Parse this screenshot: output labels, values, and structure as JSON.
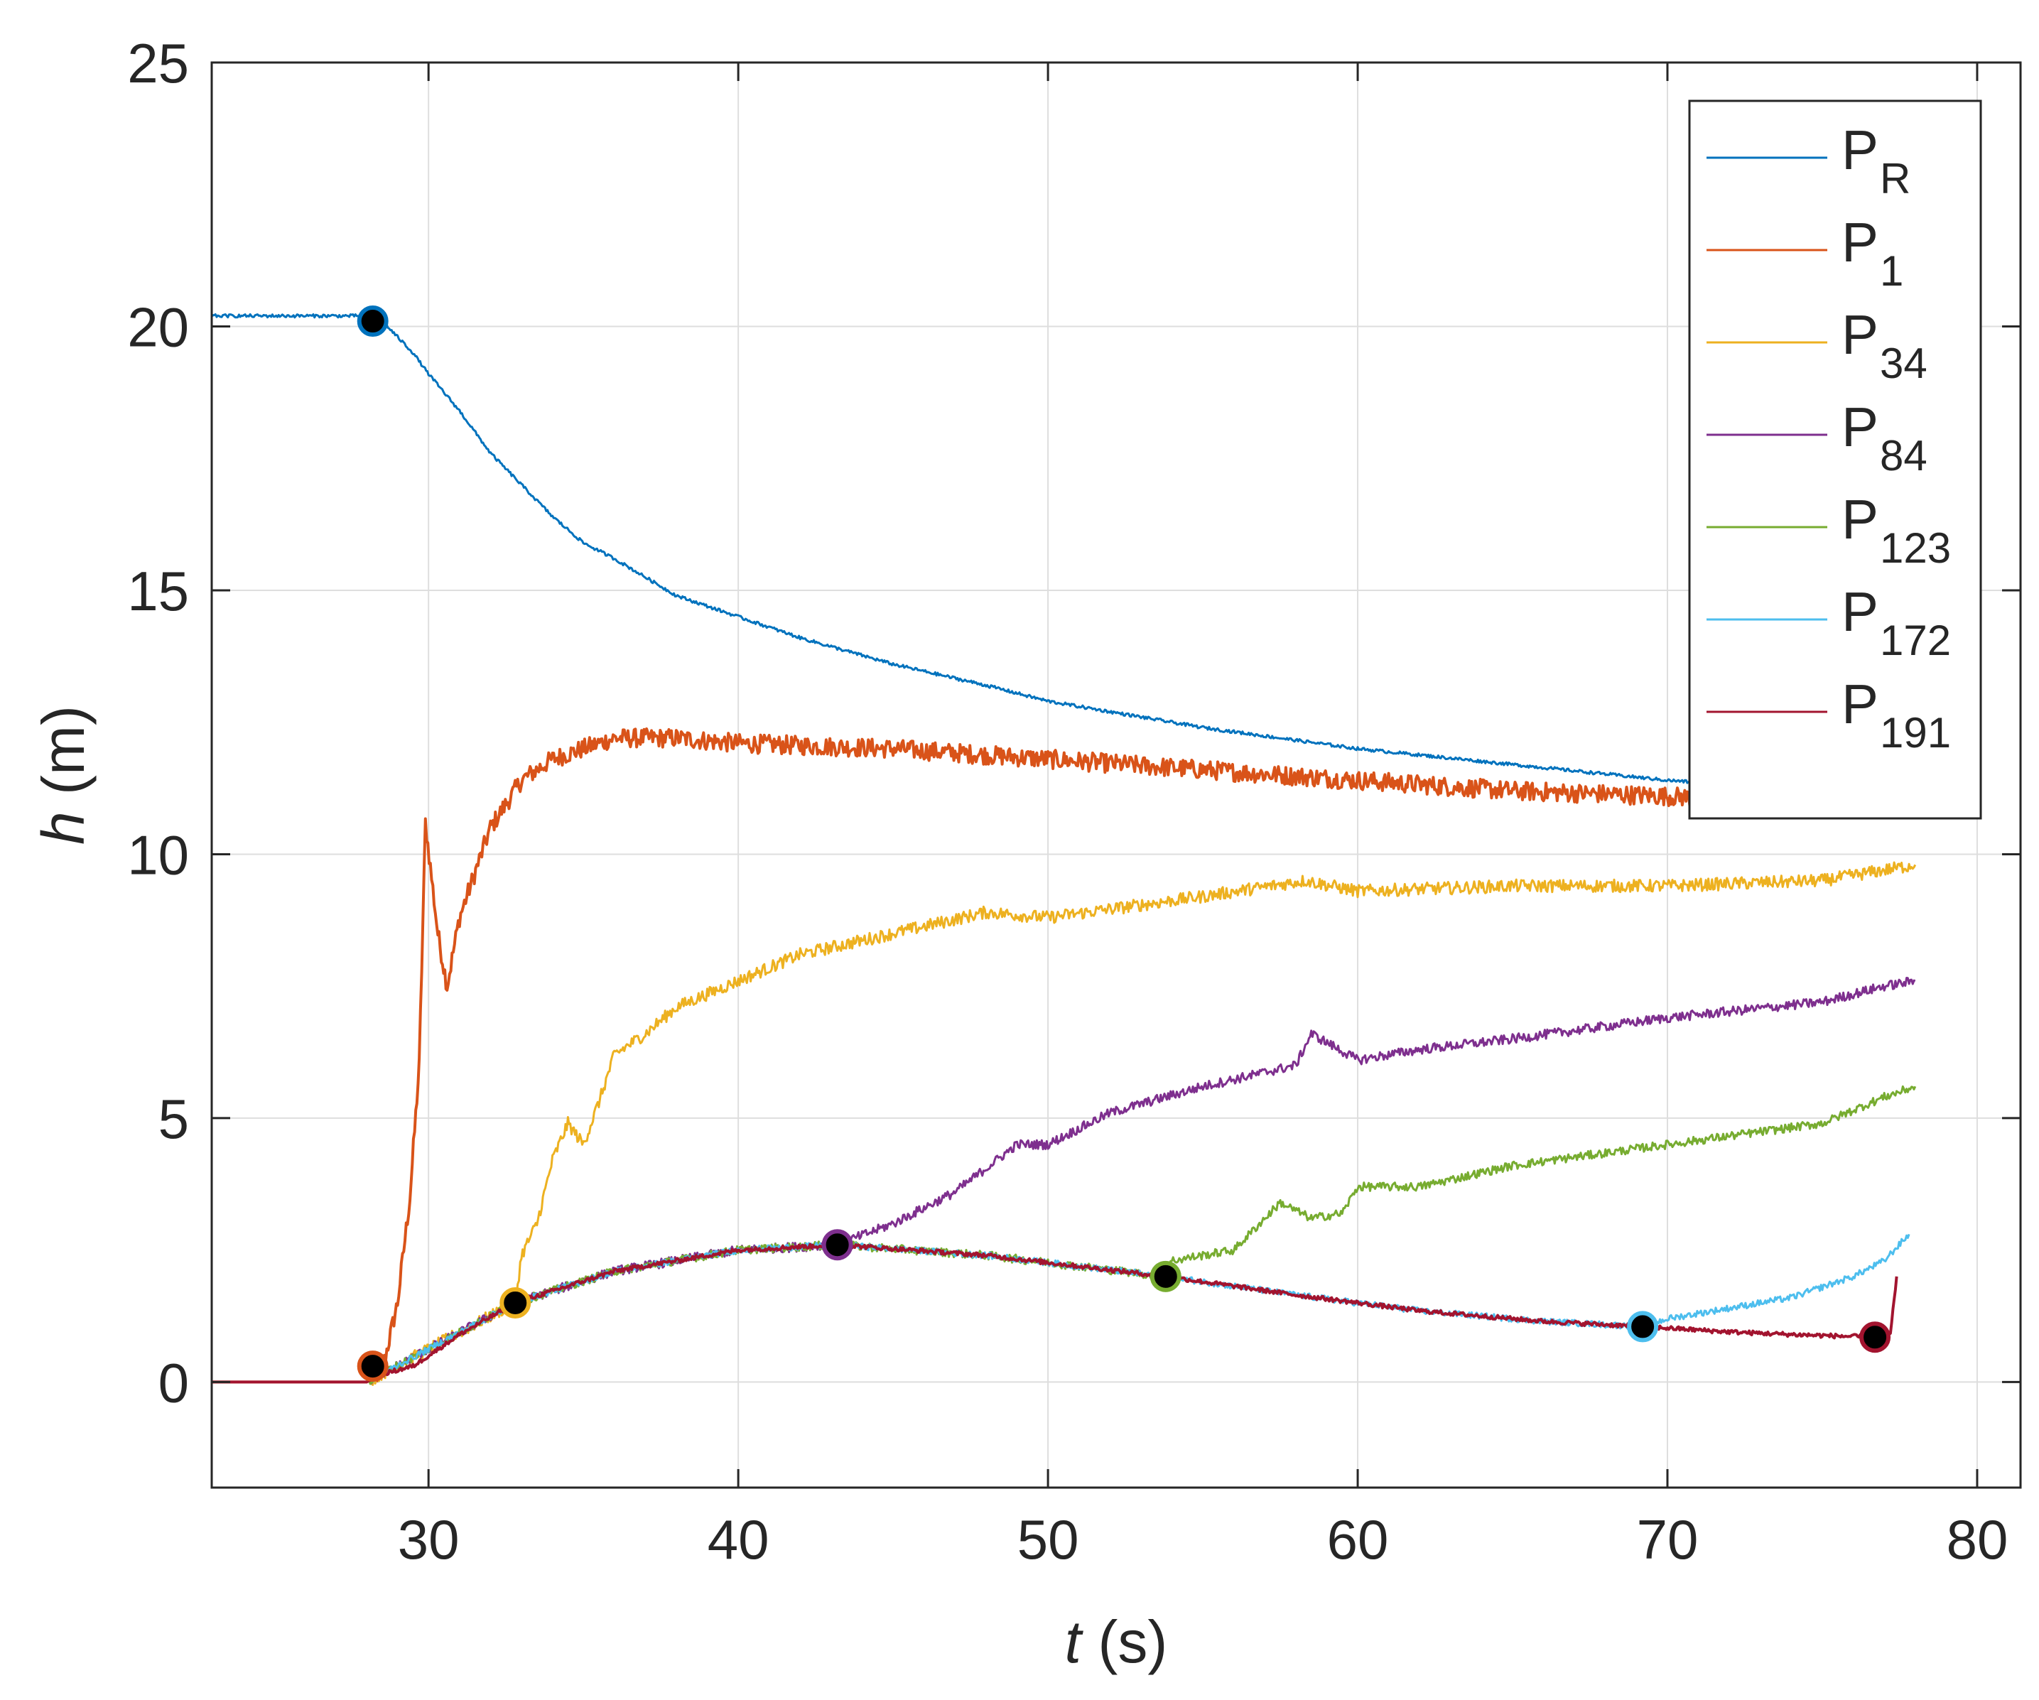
{
  "chart_data": {
    "type": "line",
    "xlabel": {
      "var": "t",
      "unit": " (s)"
    },
    "ylabel": {
      "var": "h",
      "unit": " (m)"
    },
    "xlim": [
      23,
      81.4
    ],
    "ylim": [
      -2,
      25
    ],
    "xticks": [
      30,
      40,
      50,
      60,
      70,
      80
    ],
    "yticks": [
      0,
      5,
      10,
      15,
      20,
      25
    ],
    "grid": true,
    "legend_position": "top-right",
    "series": [
      {
        "name": "P",
        "sub": "R",
        "color": "#0072BD",
        "noise": 0.03,
        "x": [
          23,
          28,
          28.5,
          29,
          29.5,
          30,
          31,
          32,
          33,
          34,
          35,
          36,
          38,
          40,
          42,
          45,
          48,
          50,
          55,
          60,
          65,
          70,
          75,
          77,
          78
        ],
        "y": [
          20.2,
          20.2,
          20.1,
          19.8,
          19.5,
          19.1,
          18.4,
          17.6,
          17.0,
          16.4,
          15.9,
          15.6,
          14.9,
          14.5,
          14.1,
          13.6,
          13.2,
          12.9,
          12.4,
          12.0,
          11.7,
          11.4,
          11.2,
          11.1,
          11.0
        ]
      },
      {
        "name": "P",
        "sub": "1",
        "color": "#D95319",
        "noise": 0.18,
        "x": [
          23,
          28,
          28.5,
          29,
          29.4,
          29.7,
          29.9,
          30.3,
          30.6,
          31,
          32,
          33,
          34,
          36,
          38,
          40,
          45,
          50,
          55,
          60,
          65,
          70,
          73,
          75,
          77,
          78
        ],
        "y": [
          0,
          0,
          0.2,
          1.5,
          3.5,
          6.0,
          10.6,
          8.5,
          7.5,
          8.8,
          10.5,
          11.4,
          11.8,
          12.2,
          12.2,
          12.1,
          12.0,
          11.8,
          11.6,
          11.4,
          11.2,
          11.1,
          11.0,
          11.1,
          11.2,
          11.3
        ]
      },
      {
        "name": "P",
        "sub": "34",
        "color": "#EDB120",
        "noise": 0.12,
        "x": [
          23,
          28,
          32.8,
          33,
          33.5,
          34,
          34.5,
          35,
          35.5,
          36,
          37,
          38,
          40,
          42,
          45,
          48,
          50,
          55,
          58.3,
          60,
          65,
          70,
          75,
          77,
          78
        ],
        "y": [
          0,
          0,
          1.5,
          2.4,
          3.0,
          4.2,
          4.9,
          4.5,
          5.3,
          6.2,
          6.6,
          7.1,
          7.6,
          8.1,
          8.5,
          8.9,
          8.8,
          9.2,
          9.5,
          9.3,
          9.4,
          9.4,
          9.5,
          9.7,
          9.8
        ]
      },
      {
        "name": "P",
        "sub": "84",
        "color": "#7E2F8E",
        "noise": 0.09,
        "x": [
          23,
          28,
          32.8,
          36,
          40,
          43.2,
          45,
          47,
          49,
          50,
          52,
          55,
          58,
          58.5,
          60,
          62,
          65,
          70,
          75,
          77,
          78
        ],
        "y": [
          0,
          0,
          1.5,
          2.1,
          2.5,
          2.6,
          3.0,
          3.6,
          4.5,
          4.5,
          5.1,
          5.6,
          6.0,
          6.6,
          6.1,
          6.3,
          6.5,
          6.9,
          7.2,
          7.5,
          7.6
        ]
      },
      {
        "name": "P",
        "sub": "123",
        "color": "#77AC30",
        "noise": 0.08,
        "x": [
          23,
          28,
          32.8,
          36,
          40,
          43.2,
          48,
          53.8,
          54,
          56,
          57.5,
          58.5,
          59.5,
          60,
          62,
          65,
          70,
          75,
          77,
          78
        ],
        "y": [
          0,
          0,
          1.5,
          2.1,
          2.5,
          2.6,
          2.4,
          2.0,
          2.3,
          2.5,
          3.4,
          3.1,
          3.2,
          3.7,
          3.7,
          4.1,
          4.5,
          4.9,
          5.4,
          5.6
        ]
      },
      {
        "name": "P",
        "sub": "172",
        "color": "#4DBEEE",
        "noise": 0.06,
        "x": [
          23,
          28,
          32.8,
          36,
          40,
          43.2,
          48,
          53.8,
          58,
          62,
          66,
          69.2,
          70,
          72,
          74,
          76,
          77,
          77.8
        ],
        "y": [
          0,
          0,
          1.5,
          2.1,
          2.5,
          2.6,
          2.4,
          2.0,
          1.65,
          1.35,
          1.15,
          1.05,
          1.2,
          1.4,
          1.6,
          2.0,
          2.3,
          2.8
        ]
      },
      {
        "name": "P",
        "sub": "191",
        "color": "#A2142F",
        "noise": 0.04,
        "x": [
          23,
          28,
          28.5,
          29.5,
          31,
          32.8,
          36,
          40,
          43.2,
          48,
          53.8,
          58,
          62,
          66,
          69.2,
          72,
          74,
          76.7,
          77.2,
          77.4
        ],
        "y": [
          0,
          0,
          0.15,
          0.3,
          0.9,
          1.5,
          2.1,
          2.5,
          2.6,
          2.4,
          2.0,
          1.65,
          1.35,
          1.15,
          1.05,
          0.95,
          0.9,
          0.85,
          0.9,
          2.0
        ]
      }
    ],
    "markers": [
      {
        "x": 28.2,
        "y": 20.1,
        "edge": "#0072BD"
      },
      {
        "x": 28.2,
        "y": 0.3,
        "edge": "#D95319"
      },
      {
        "x": 32.8,
        "y": 1.5,
        "edge": "#EDB120"
      },
      {
        "x": 43.2,
        "y": 2.6,
        "edge": "#7E2F8E"
      },
      {
        "x": 53.8,
        "y": 2.0,
        "edge": "#77AC30"
      },
      {
        "x": 69.2,
        "y": 1.05,
        "edge": "#4DBEEE"
      },
      {
        "x": 76.7,
        "y": 0.85,
        "edge": "#A2142F"
      }
    ]
  }
}
